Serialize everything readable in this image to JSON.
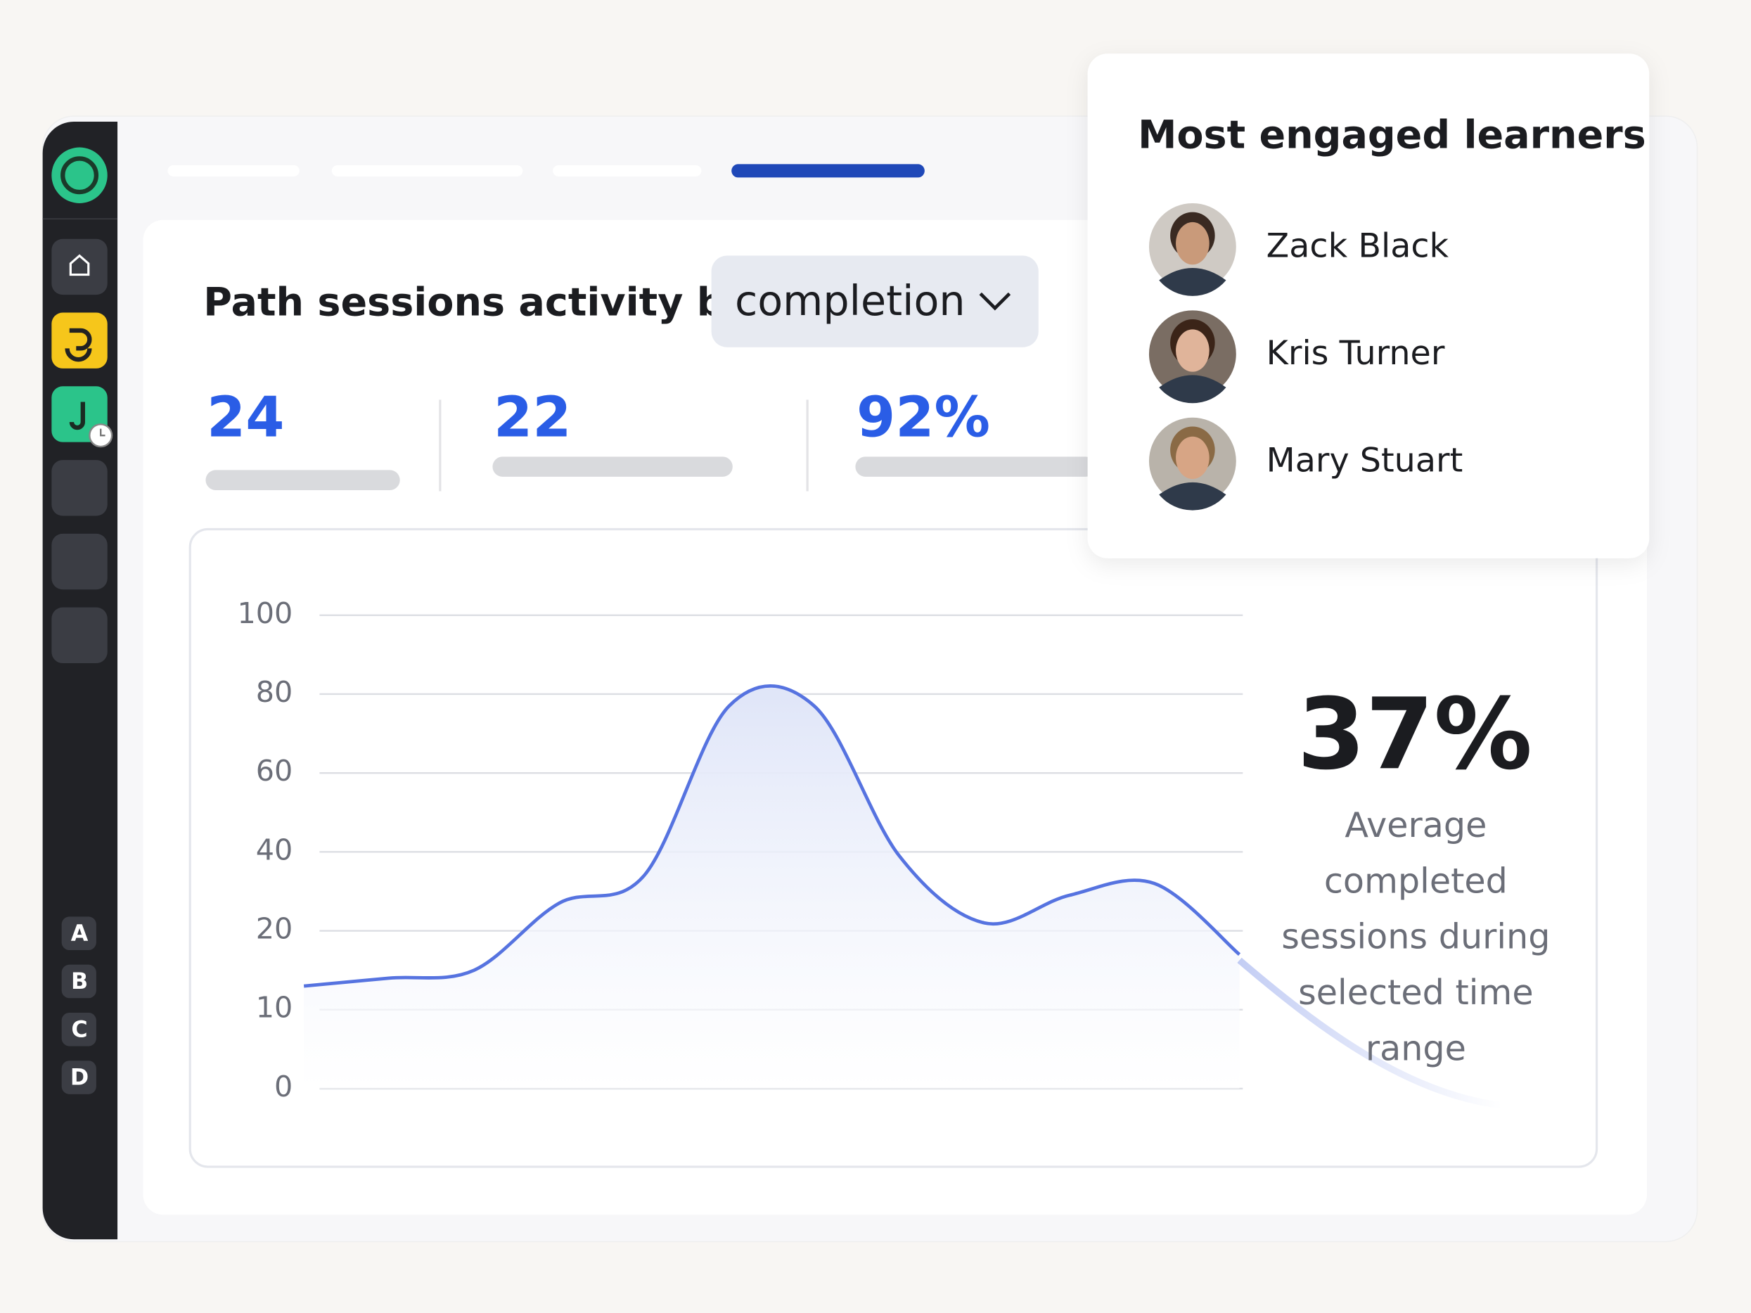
{
  "header": {
    "title": "Path sessions activity by",
    "dropdown": "completion"
  },
  "stats": [
    "24",
    "22",
    "92%"
  ],
  "sidebar": {
    "letters": [
      "A",
      "B",
      "C",
      "D"
    ]
  },
  "chart_data": {
    "type": "area",
    "color": "#5673e0",
    "categories": [
      null,
      null,
      null,
      null,
      null,
      null,
      null,
      null,
      null,
      null,
      null,
      null
    ],
    "values": [
      13,
      14,
      15,
      27,
      34,
      77,
      77,
      39,
      22,
      29,
      32,
      17
    ],
    "ylim": [
      0,
      100
    ],
    "yticks": [
      100,
      80,
      60,
      40,
      20,
      10,
      0
    ],
    "grid": true
  },
  "summary": {
    "value": "37%",
    "caption": [
      "Average",
      "completed",
      "sessions during",
      "selected time",
      "range"
    ]
  },
  "learners": {
    "title": "Most engaged learners",
    "names": [
      "Zack Black",
      "Kris Turner",
      "Mary Stuart"
    ]
  }
}
